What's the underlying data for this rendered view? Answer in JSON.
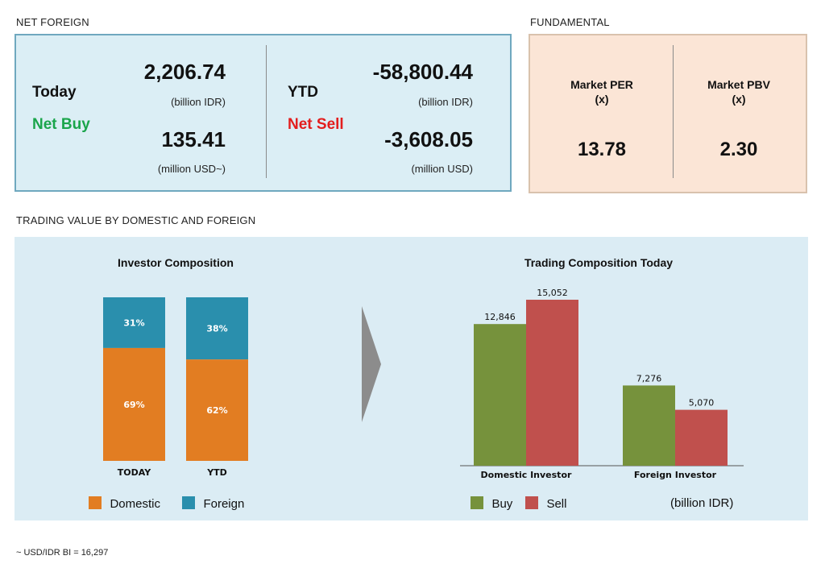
{
  "net_foreign": {
    "section_title": "NET FOREIGN",
    "today": {
      "label": "Today",
      "status": "Net Buy",
      "idr_value": "2,206.74",
      "idr_unit": "(billion IDR)",
      "usd_value": "135.41",
      "usd_unit": "(million USD~)"
    },
    "ytd": {
      "label": "YTD",
      "status": "Net Sell",
      "idr_value": "-58,800.44",
      "idr_unit": "(billion IDR)",
      "usd_value": "-3,608.05",
      "usd_unit": "(million USD)"
    }
  },
  "fundamental": {
    "section_title": "FUNDAMENTAL",
    "per_label": "Market PER",
    "per_unit": "(x)",
    "per_value": "13.78",
    "pbv_label": "Market PBV",
    "pbv_unit": "(x)",
    "pbv_value": "2.30"
  },
  "trading_section_title": "TRADING VALUE BY DOMESTIC AND FOREIGN",
  "footnote": "~ USD/IDR BI = 16,297",
  "colors": {
    "domestic": "#e27d22",
    "foreign": "#2a8fad",
    "buy": "#76923c",
    "sell": "#c0504d"
  },
  "chart_data": [
    {
      "type": "bar",
      "stacked": true,
      "title": "Investor Composition",
      "categories": [
        "TODAY",
        "YTD"
      ],
      "series": [
        {
          "name": "Domestic",
          "values": [
            69,
            62
          ],
          "labels": [
            "69%",
            "62%"
          ]
        },
        {
          "name": "Foreign",
          "values": [
            31,
            38
          ],
          "labels": [
            "31%",
            "38%"
          ]
        }
      ],
      "ylim": [
        0,
        100
      ],
      "legend": "bottom"
    },
    {
      "type": "bar",
      "title": "Trading Composition Today",
      "categories": [
        "Domestic Investor",
        "Foreign Investor"
      ],
      "series": [
        {
          "name": "Buy",
          "values": [
            12846,
            7276
          ],
          "labels": [
            "12,846",
            "7,276"
          ]
        },
        {
          "name": "Sell",
          "values": [
            15052,
            5070
          ],
          "labels": [
            "15,052",
            "5,070"
          ]
        }
      ],
      "unit_note": "(billion IDR)",
      "ylim": [
        0,
        15052
      ],
      "legend": "bottom"
    }
  ]
}
